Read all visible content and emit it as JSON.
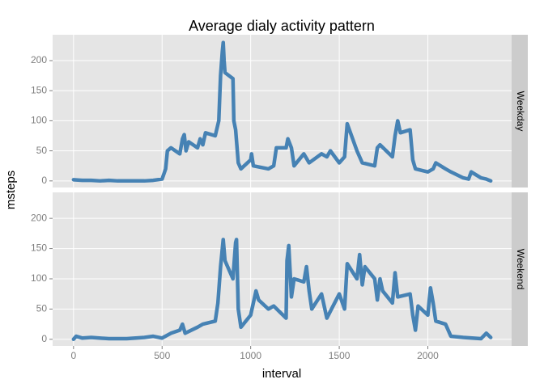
{
  "chart_data": {
    "type": "line",
    "title": "Average dialy activity pattern",
    "x_label": "interval",
    "y_label": "msteps",
    "color": "#4682b4",
    "grid": true,
    "xlim": [
      -118,
      2473
    ],
    "xticks": [
      0,
      500,
      1000,
      1500,
      2000
    ],
    "ylim": [
      -11,
      243
    ],
    "yticks": [
      0,
      50,
      100,
      150,
      200
    ],
    "facets": [
      {
        "name": "Weekday",
        "x": [
          0,
          50,
          100,
          150,
          200,
          250,
          300,
          350,
          400,
          450,
          500,
          520,
          530,
          550,
          600,
          615,
          625,
          635,
          650,
          700,
          715,
          730,
          745,
          800,
          820,
          830,
          840,
          845,
          850,
          855,
          900,
          905,
          915,
          930,
          945,
          1000,
          1005,
          1015,
          1100,
          1130,
          1145,
          1200,
          1210,
          1230,
          1245,
          1300,
          1330,
          1400,
          1430,
          1450,
          1500,
          1530,
          1545,
          1600,
          1630,
          1700,
          1715,
          1730,
          1800,
          1815,
          1830,
          1845,
          1900,
          1915,
          1930,
          2000,
          2030,
          2045,
          2100,
          2130,
          2200,
          2230,
          2245,
          2300,
          2330,
          2355
        ],
        "values": [
          2,
          1,
          1,
          0,
          1,
          0,
          0,
          0,
          0,
          1,
          3,
          20,
          50,
          55,
          45,
          70,
          77,
          50,
          65,
          55,
          70,
          60,
          80,
          75,
          100,
          175,
          215,
          230,
          200,
          180,
          170,
          100,
          85,
          30,
          20,
          35,
          45,
          25,
          20,
          25,
          55,
          55,
          70,
          55,
          25,
          45,
          30,
          45,
          40,
          50,
          30,
          40,
          95,
          50,
          30,
          25,
          55,
          60,
          40,
          75,
          100,
          80,
          85,
          35,
          20,
          15,
          20,
          30,
          20,
          15,
          5,
          3,
          15,
          5,
          3,
          0
        ]
      },
      {
        "name": "Weekend",
        "x": [
          0,
          15,
          50,
          100,
          200,
          300,
          400,
          450,
          500,
          550,
          600,
          615,
          630,
          700,
          730,
          800,
          815,
          830,
          845,
          855,
          900,
          915,
          920,
          930,
          945,
          1000,
          1015,
          1030,
          1045,
          1100,
          1130,
          1200,
          1205,
          1215,
          1230,
          1245,
          1300,
          1315,
          1330,
          1345,
          1400,
          1430,
          1500,
          1530,
          1545,
          1600,
          1615,
          1630,
          1645,
          1700,
          1715,
          1730,
          1745,
          1800,
          1815,
          1830,
          1900,
          1915,
          1930,
          1945,
          2000,
          2015,
          2030,
          2045,
          2100,
          2130,
          2200,
          2300,
          2330,
          2355
        ],
        "values": [
          0,
          5,
          2,
          3,
          1,
          1,
          3,
          5,
          2,
          10,
          15,
          25,
          10,
          20,
          25,
          30,
          60,
          120,
          165,
          130,
          100,
          160,
          165,
          50,
          20,
          40,
          60,
          80,
          65,
          50,
          55,
          35,
          130,
          155,
          70,
          100,
          95,
          120,
          80,
          50,
          75,
          35,
          75,
          50,
          125,
          100,
          140,
          90,
          120,
          100,
          65,
          100,
          80,
          60,
          110,
          70,
          75,
          40,
          15,
          55,
          40,
          85,
          60,
          30,
          25,
          5,
          3,
          1,
          10,
          3
        ]
      }
    ]
  }
}
